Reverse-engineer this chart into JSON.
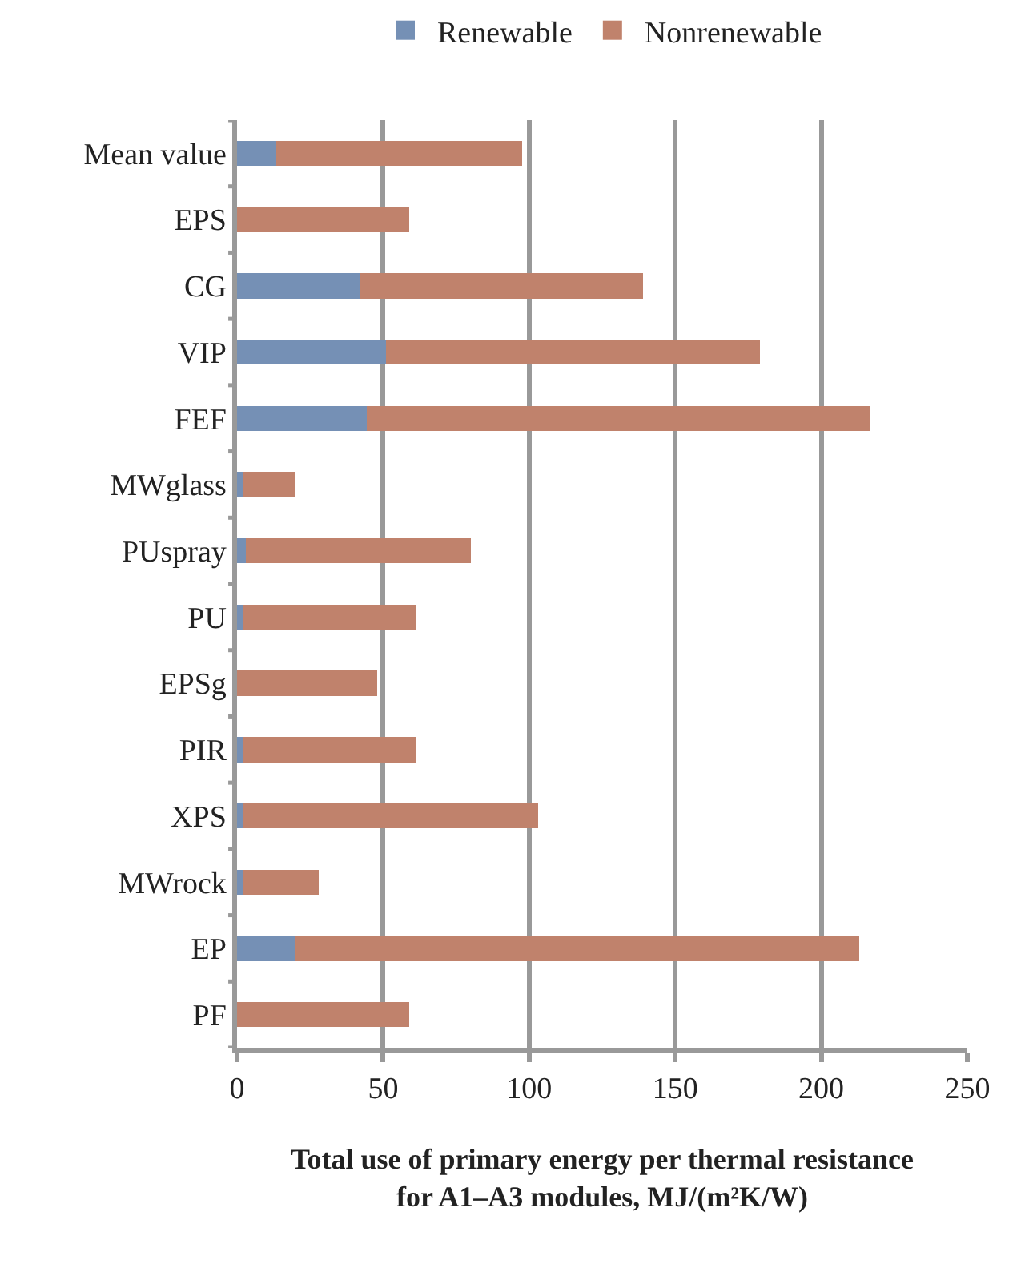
{
  "chart_data": {
    "type": "bar",
    "orientation": "horizontal",
    "stacked": true,
    "categories": [
      "Mean value",
      "EPS",
      "CG",
      "VIP",
      "FEF",
      "MWglass",
      "PUspray",
      "PU",
      "EPSg",
      "PIR",
      "XPS",
      "MWrock",
      "EP",
      "PF"
    ],
    "series": [
      {
        "name": "Renewable",
        "color": "#7590b5",
        "values": [
          13.5,
          0,
          42,
          51,
          44.5,
          2,
          3,
          2,
          0,
          2,
          2,
          2,
          20,
          0
        ]
      },
      {
        "name": "Nonrenewable",
        "color": "#c0826c",
        "values": [
          84,
          59,
          97,
          128,
          172,
          18,
          77,
          59,
          48,
          59,
          101,
          26,
          193,
          59
        ]
      }
    ],
    "xlabel": "Total use of primary energy per thermal resistance\nfor A1–A3 modules, MJ/(m²K/W)",
    "xlim": [
      0,
      250
    ],
    "xticks": [
      0,
      50,
      100,
      150,
      200,
      250
    ],
    "grid": "x",
    "legend": "top"
  }
}
